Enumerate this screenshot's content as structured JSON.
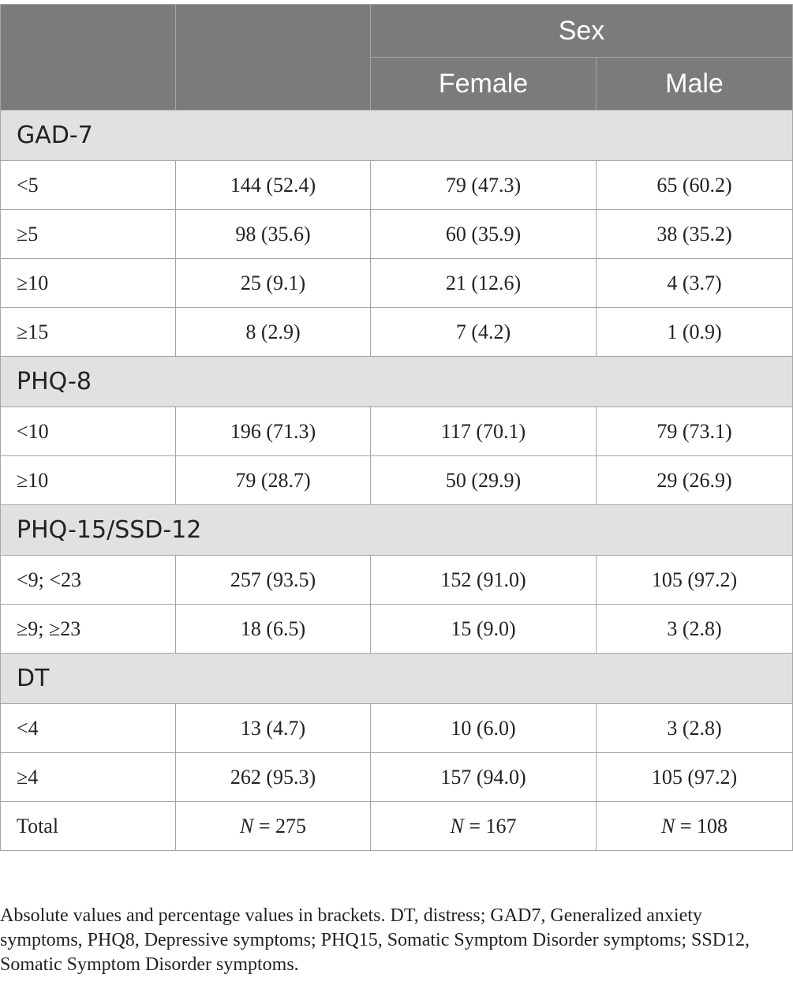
{
  "header": {
    "group_label": "Sex",
    "columns": [
      "Female",
      "Male"
    ]
  },
  "sections": [
    {
      "title": "GAD-7",
      "rows": [
        {
          "label": "<5",
          "total": "144 (52.4)",
          "female": "79 (47.3)",
          "male": "65 (60.2)"
        },
        {
          "label": "≥5",
          "total": "98 (35.6)",
          "female": "60 (35.9)",
          "male": "38 (35.2)"
        },
        {
          "label": "≥10",
          "total": "25 (9.1)",
          "female": "21 (12.6)",
          "male": "4 (3.7)"
        },
        {
          "label": "≥15",
          "total": "8 (2.9)",
          "female": "7 (4.2)",
          "male": "1 (0.9)"
        }
      ]
    },
    {
      "title": "PHQ-8",
      "rows": [
        {
          "label": "<10",
          "total": "196 (71.3)",
          "female": "117 (70.1)",
          "male": "79 (73.1)"
        },
        {
          "label": "≥10",
          "total": "79 (28.7)",
          "female": "50 (29.9)",
          "male": "29 (26.9)"
        }
      ]
    },
    {
      "title": "PHQ-15/SSD-12",
      "rows": [
        {
          "label": "<9; <23",
          "total": "257 (93.5)",
          "female": "152 (91.0)",
          "male": "105 (97.2)"
        },
        {
          "label": "≥9; ≥23",
          "total": "18 (6.5)",
          "female": "15 (9.0)",
          "male": "3 (2.8)"
        }
      ]
    },
    {
      "title": "DT",
      "rows": [
        {
          "label": "<4",
          "total": "13 (4.7)",
          "female": "10 (6.0)",
          "male": "3 (2.8)"
        },
        {
          "label": "≥4",
          "total": "262 (95.3)",
          "female": "157 (94.0)",
          "male": "105 (97.2)"
        }
      ]
    }
  ],
  "total_row": {
    "label": "Total",
    "n_symbol": "N",
    "total": " = 275",
    "female": " = 167",
    "male": " = 108"
  },
  "footnote": "Absolute values and percentage values in brackets. DT, distress; GAD7, Generalized anxiety symptoms, PHQ8, Depressive symptoms; PHQ15, Somatic Symptom Disorder symptoms; SSD12, Somatic Symptom Disorder symptoms."
}
